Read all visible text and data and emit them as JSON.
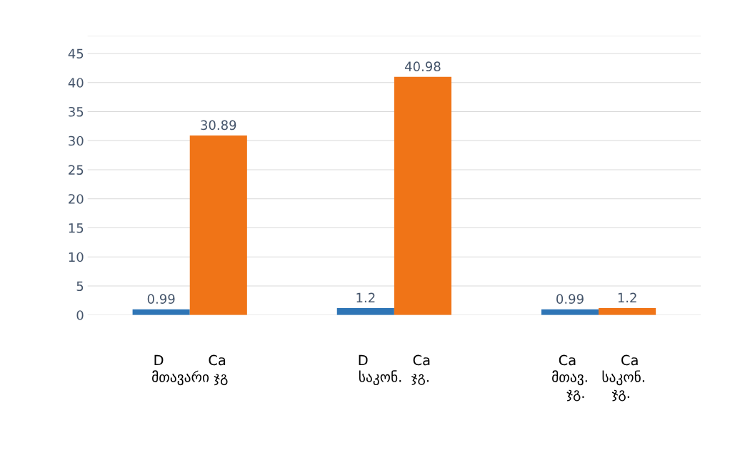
{
  "chart_data": {
    "type": "bar",
    "categories": [
      "D          Ca\nმთავარი ჯგ",
      "D          Ca\nსაკონ.  ჯგ.",
      "Ca          Ca\nმთავ.   საკონ.\nჯგ.      ჯგ."
    ],
    "series": [
      {
        "color": "#2e75b6",
        "values": [
          0.99,
          1.2,
          0.99
        ]
      },
      {
        "color": "#f07417",
        "values": [
          30.89,
          40.98,
          1.2
        ]
      }
    ],
    "ylim": [
      0,
      48
    ],
    "yticks": [
      0,
      5,
      10,
      15,
      20,
      25,
      30,
      35,
      40,
      45
    ],
    "grid": "y",
    "data_labels": true,
    "legend": false
  }
}
